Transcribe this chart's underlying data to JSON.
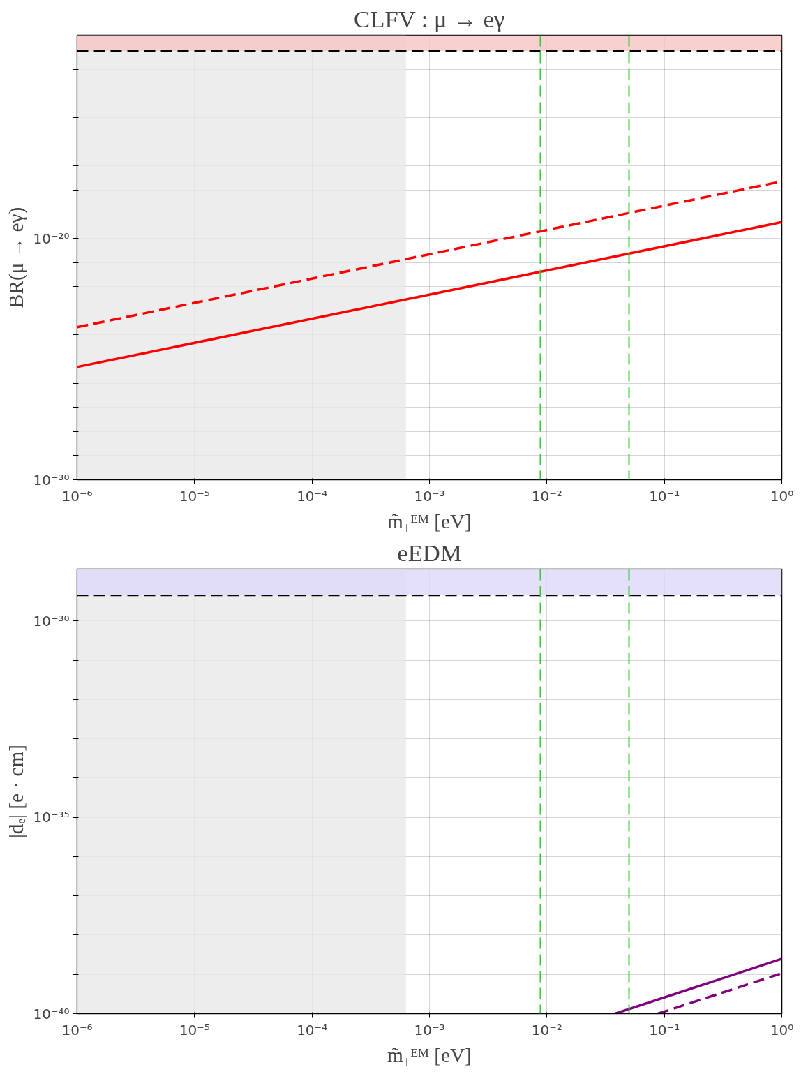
{
  "chart_data": [
    {
      "type": "line",
      "title": "CLFV : μ → eγ",
      "xlabel": "m̃₁ᴱᴹ [eV]",
      "ylabel": "BR(μ → eγ)",
      "log": "xy",
      "grid": true,
      "xlim": [
        1e-06,
        1
      ],
      "ylim": [
        1e-30,
        2.6e-12
      ],
      "xticks": [
        {
          "value": 1e-06,
          "label": "10⁻⁶"
        },
        {
          "value": 1e-05,
          "label": "10⁻⁵"
        },
        {
          "value": 0.0001,
          "label": "10⁻⁴"
        },
        {
          "value": 0.001,
          "label": "10⁻³"
        },
        {
          "value": 0.01,
          "label": "10⁻²"
        },
        {
          "value": 0.1,
          "label": "10⁻¹"
        },
        {
          "value": 1,
          "label": "10⁰"
        }
      ],
      "yticks": [
        {
          "value": 1e-30,
          "label": "10⁻³⁰"
        },
        {
          "value": 1e-29,
          "label": null
        },
        {
          "value": 1e-28,
          "label": null
        },
        {
          "value": 1e-27,
          "label": null
        },
        {
          "value": 1e-26,
          "label": null
        },
        {
          "value": 1e-25,
          "label": null
        },
        {
          "value": 1e-24,
          "label": null
        },
        {
          "value": 1e-23,
          "label": null
        },
        {
          "value": 1e-22,
          "label": null
        },
        {
          "value": 1e-21,
          "label": null
        },
        {
          "value": 1e-20,
          "label": "10⁻²⁰"
        },
        {
          "value": 1e-19,
          "label": null
        },
        {
          "value": 1e-18,
          "label": null
        },
        {
          "value": 1e-17,
          "label": null
        },
        {
          "value": 1e-16,
          "label": null
        },
        {
          "value": 1e-15,
          "label": null
        },
        {
          "value": 1e-14,
          "label": null
        },
        {
          "value": 1e-13,
          "label": null
        },
        {
          "value": 1e-12,
          "label": null
        }
      ],
      "series": [
        {
          "color": "#ff0000",
          "line_style": "solid",
          "x": [
            1e-06,
            1
          ],
          "values": [
            4.7e-26,
            4.7e-20
          ]
        },
        {
          "color": "#ff0000",
          "line_style": "dashed",
          "x": [
            1e-06,
            1
          ],
          "values": [
            2.1e-24,
            2.3e-18
          ]
        }
      ],
      "bands": [
        {
          "axis": "x",
          "from": 1e-06,
          "to": 0.00063,
          "color": "#e8e8e8"
        },
        {
          "axis": "y",
          "from": 5.8e-13,
          "to": 2.6e-12,
          "color": "#f7c4c4"
        }
      ],
      "ref_lines": [
        {
          "axis": "y",
          "value": 5.8e-13,
          "color": "#000000",
          "line_style": "dashed"
        },
        {
          "axis": "x",
          "value": 0.0088,
          "color": "#33cc33",
          "line_style": "dashed"
        },
        {
          "axis": "x",
          "value": 0.05,
          "color": "#33cc33",
          "line_style": "dashed"
        }
      ]
    },
    {
      "type": "line",
      "title": "eEDM",
      "xlabel": "m̃₁ᴱᴹ [eV]",
      "ylabel": "|dₑ| [e · cm]",
      "log": "xy",
      "grid": true,
      "xlim": [
        1e-06,
        1
      ],
      "ylim": [
        1e-40,
        2.1e-29
      ],
      "xticks": [
        {
          "value": 1e-06,
          "label": "10⁻⁶"
        },
        {
          "value": 1e-05,
          "label": "10⁻⁵"
        },
        {
          "value": 0.0001,
          "label": "10⁻⁴"
        },
        {
          "value": 0.001,
          "label": "10⁻³"
        },
        {
          "value": 0.01,
          "label": "10⁻²"
        },
        {
          "value": 0.1,
          "label": "10⁻¹"
        },
        {
          "value": 1,
          "label": "10⁰"
        }
      ],
      "yticks": [
        {
          "value": 1e-40,
          "label": "10⁻⁴⁰"
        },
        {
          "value": 1e-39,
          "label": null
        },
        {
          "value": 1e-38,
          "label": null
        },
        {
          "value": 1e-37,
          "label": null
        },
        {
          "value": 1e-36,
          "label": null
        },
        {
          "value": 1e-35,
          "label": "10⁻³⁵"
        },
        {
          "value": 1e-34,
          "label": null
        },
        {
          "value": 1e-33,
          "label": null
        },
        {
          "value": 1e-32,
          "label": null
        },
        {
          "value": 1e-31,
          "label": null
        },
        {
          "value": 1e-30,
          "label": "10⁻³⁰"
        }
      ],
      "series": [
        {
          "color": "#800080",
          "line_style": "solid",
          "x": [
            0.038,
            1
          ],
          "values": [
            1e-40,
            2.5e-39
          ]
        },
        {
          "color": "#800080",
          "line_style": "dashed",
          "x": [
            0.088,
            1
          ],
          "values": [
            1e-40,
            1.07e-39
          ]
        }
      ],
      "bands": [
        {
          "axis": "x",
          "from": 1e-06,
          "to": 0.00063,
          "color": "#e8e8e8"
        },
        {
          "axis": "y",
          "from": 4.5e-30,
          "to": 2.1e-29,
          "color": "#ddd8f7"
        }
      ],
      "ref_lines": [
        {
          "axis": "y",
          "value": 4.5e-30,
          "color": "#000000",
          "line_style": "dashed"
        },
        {
          "axis": "x",
          "value": 0.0088,
          "color": "#33cc33",
          "line_style": "dashed"
        },
        {
          "axis": "x",
          "value": 0.05,
          "color": "#33cc33",
          "line_style": "dashed"
        }
      ]
    }
  ]
}
